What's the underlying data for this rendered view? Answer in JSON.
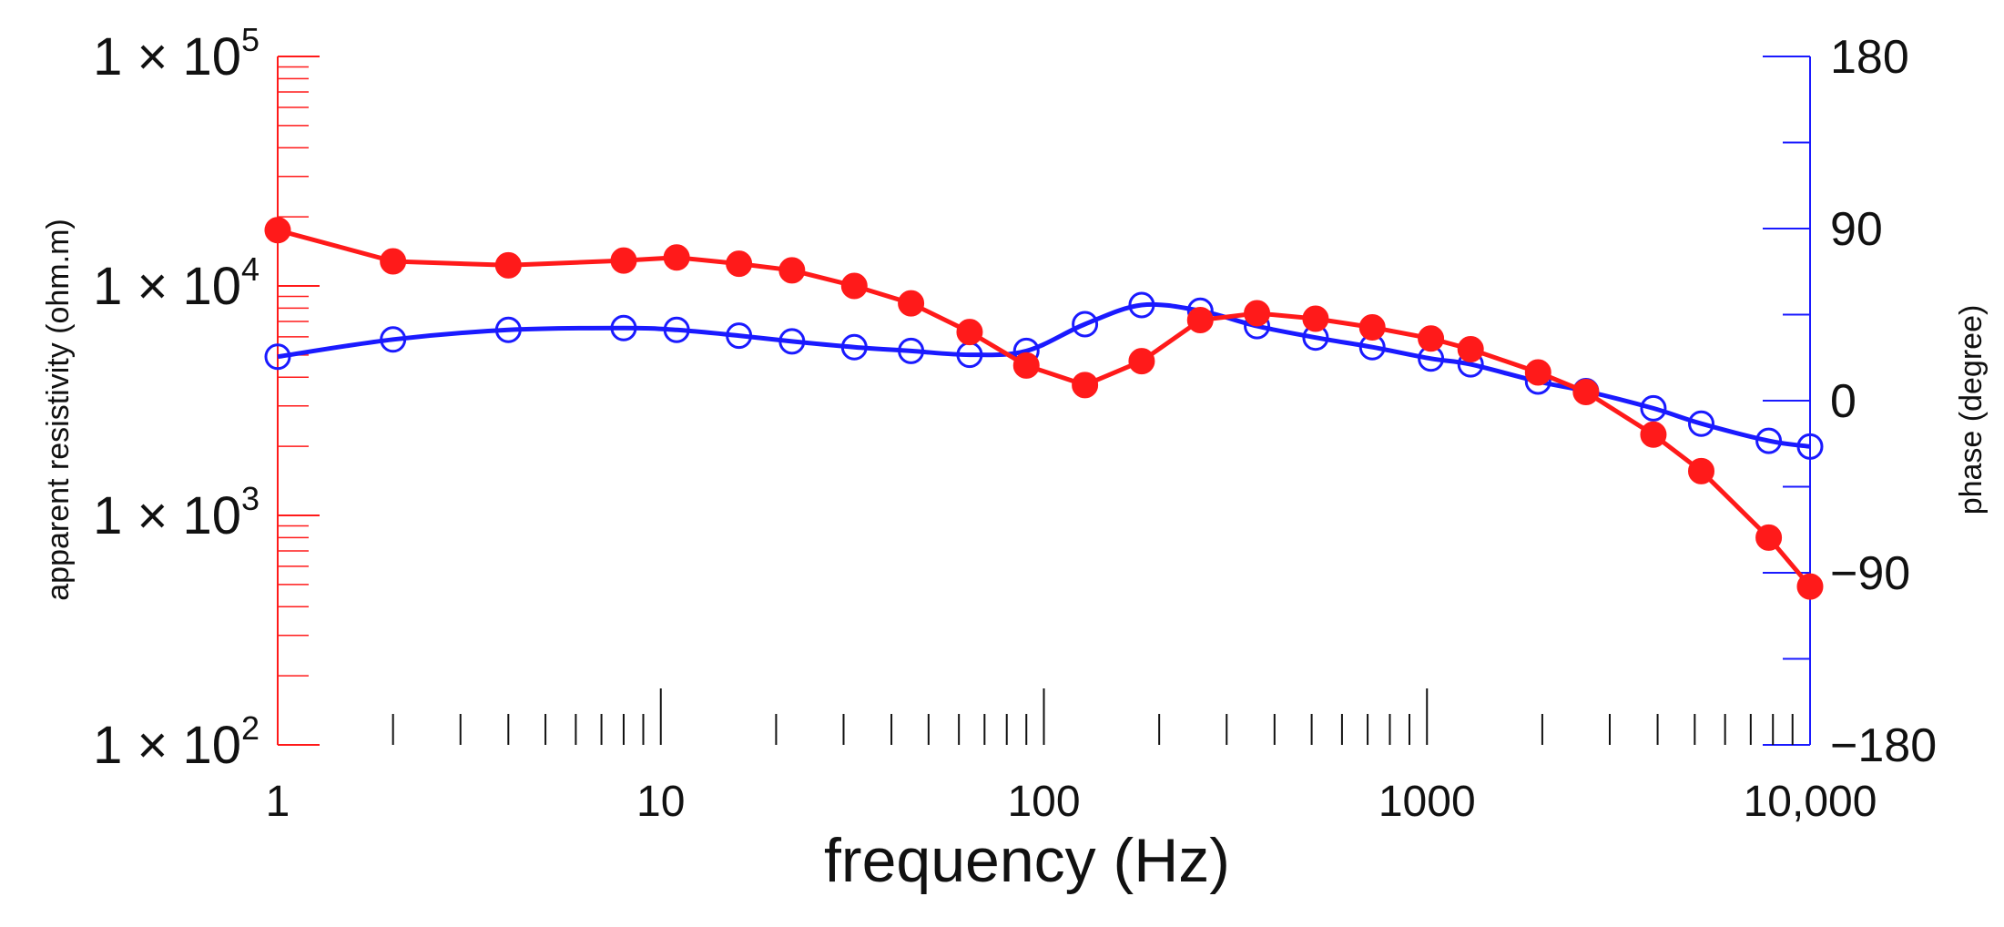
{
  "chart_data": {
    "type": "line",
    "xlabel": "frequency (Hz)",
    "y_left_label": "apparent resistivity (ohm.m)",
    "y_right_label": "phase (degree)",
    "x_scale": "log",
    "xlim": [
      1,
      10000
    ],
    "x_ticks": [
      {
        "value": 1,
        "label": "1"
      },
      {
        "value": 10,
        "label": "10"
      },
      {
        "value": 100,
        "label": "100"
      },
      {
        "value": 1000,
        "label": "1000"
      },
      {
        "value": 10000,
        "label": "10,000"
      }
    ],
    "y_left_scale": "log",
    "y_left_lim": [
      100,
      100000
    ],
    "y_left_ticks": [
      {
        "value": 100,
        "label_base": "1 × 10",
        "label_exp": "2"
      },
      {
        "value": 1000,
        "label_base": "1 × 10",
        "label_exp": "3"
      },
      {
        "value": 10000,
        "label_base": "1 × 10",
        "label_exp": "4"
      },
      {
        "value": 100000,
        "label_base": "1 × 10",
        "label_exp": "5"
      }
    ],
    "y_right_lim": [
      -180,
      180
    ],
    "y_right_ticks": [
      {
        "value": 180,
        "label": "180"
      },
      {
        "value": 90,
        "label": "90"
      },
      {
        "value": 0,
        "label": "0"
      },
      {
        "value": -90,
        "label": "−90"
      },
      {
        "value": -180,
        "label": "−180"
      }
    ],
    "y_right_minor_step": 45,
    "series": [
      {
        "name": "apparent resistivity",
        "axis": "left",
        "color": "#ff1a1a",
        "marker": "filled-circle",
        "x": [
          1,
          2,
          4,
          8,
          11,
          16,
          22,
          32,
          45,
          64,
          90,
          128,
          180,
          256,
          360,
          512,
          720,
          1024,
          1300,
          1950,
          2600,
          3900,
          5200,
          7800,
          10000
        ],
        "y": [
          17500,
          12800,
          12300,
          12900,
          13300,
          12500,
          11700,
          10000,
          8400,
          6300,
          4500,
          3700,
          4700,
          7100,
          7600,
          7200,
          6600,
          5900,
          5300,
          4200,
          3450,
          2250,
          1560,
          800,
          490
        ]
      },
      {
        "name": "phase",
        "axis": "right",
        "color": "#1a1aff",
        "marker": "open-circle",
        "x": [
          1,
          2,
          4,
          8,
          11,
          16,
          22,
          32,
          45,
          64,
          90,
          128,
          180,
          256,
          360,
          512,
          720,
          1024,
          1300,
          1950,
          2600,
          3900,
          5200,
          7800,
          10000
        ],
        "y": [
          23,
          32,
          37,
          38,
          37,
          34,
          31,
          28,
          26,
          24,
          26,
          40,
          50,
          47,
          39,
          33,
          28,
          22,
          19,
          10,
          5,
          -4,
          -12,
          -21,
          -24
        ]
      }
    ]
  }
}
